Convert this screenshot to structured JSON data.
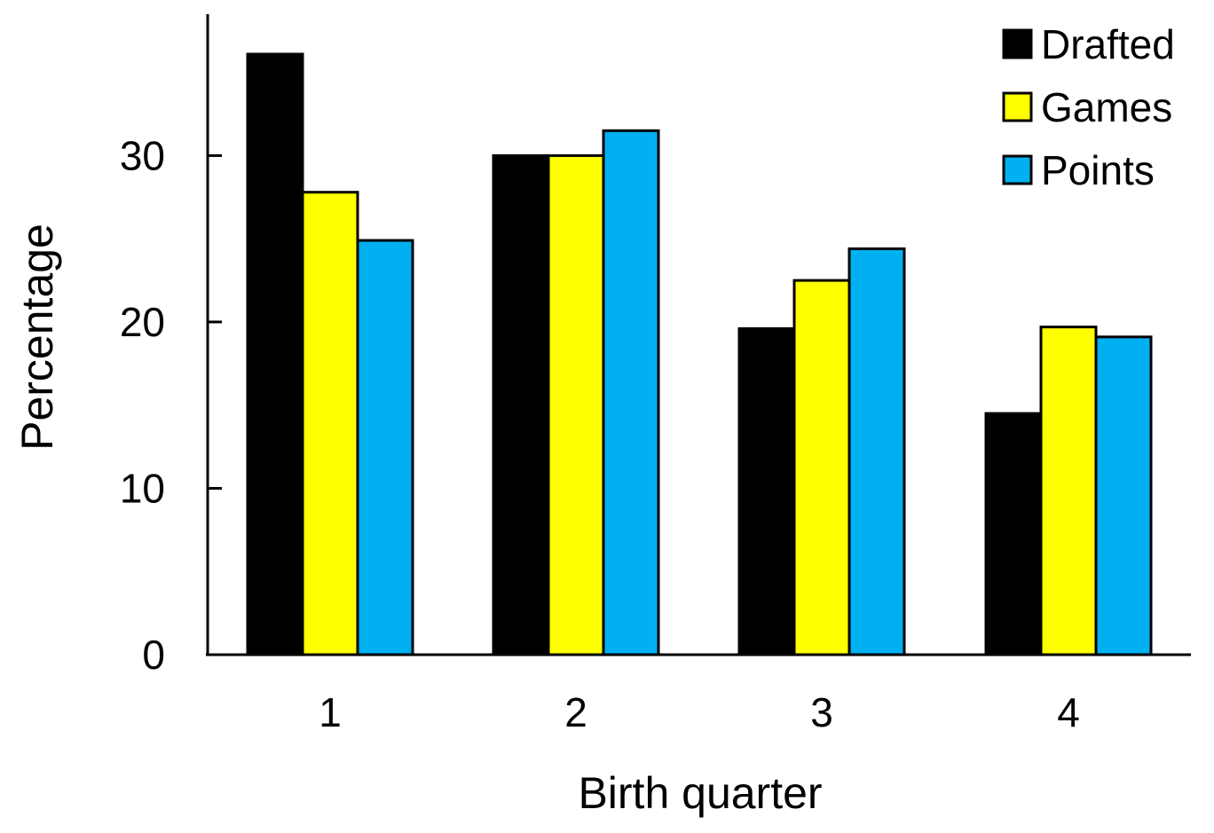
{
  "chart_data": {
    "type": "bar",
    "title": "",
    "xlabel": "Birth quarter",
    "ylabel": "Percentage",
    "categories": [
      "1",
      "2",
      "3",
      "4"
    ],
    "ylim": [
      0,
      38.5
    ],
    "yticks": [
      0,
      10,
      20,
      30
    ],
    "ytick_labels": [
      "0",
      "10",
      "20",
      "30"
    ],
    "grid": false,
    "legend_position": "top-right",
    "series": [
      {
        "name": "Drafted",
        "color": "#000000",
        "values": [
          36.1,
          30.0,
          19.6,
          14.5
        ]
      },
      {
        "name": "Games",
        "color": "#ffff00",
        "values": [
          27.8,
          30.0,
          22.5,
          19.7
        ]
      },
      {
        "name": "Points",
        "color": "#00b0f0",
        "values": [
          24.9,
          31.5,
          24.4,
          19.1
        ]
      }
    ]
  }
}
